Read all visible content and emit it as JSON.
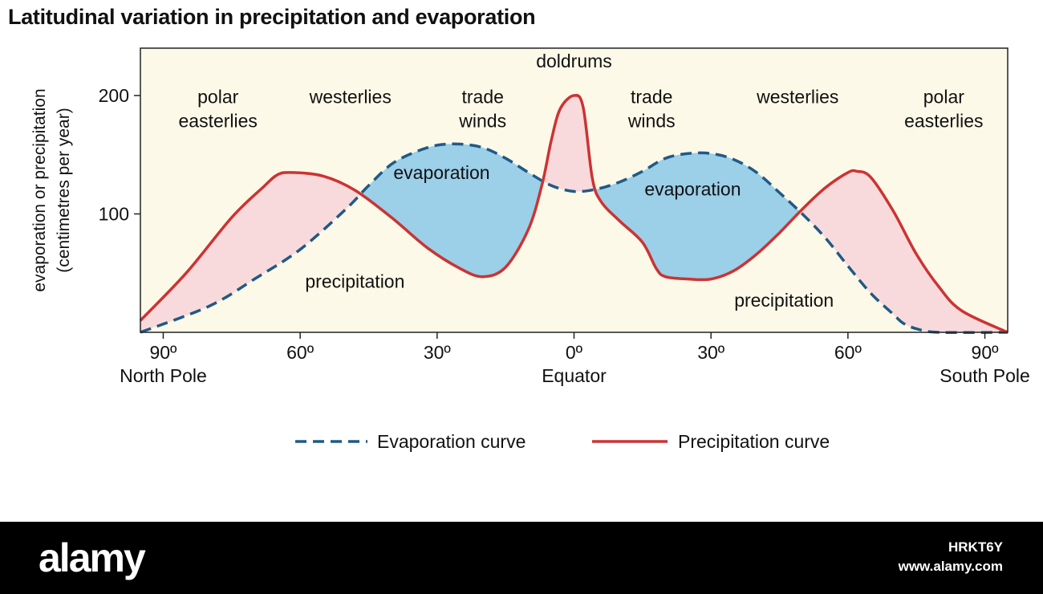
{
  "title": "Latitudinal variation in precipitation and evaporation",
  "chart_data": {
    "type": "line",
    "title": "Latitudinal variation in precipitation and evaporation",
    "ylabel_line1": "evaporation or precipitation",
    "ylabel_line2": "(centimetres per year)",
    "yticks": [
      100,
      200
    ],
    "ylim": [
      0,
      240
    ],
    "xlim": [
      -95,
      95
    ],
    "xticks": [
      {
        "x": -90,
        "label": "90º",
        "sub": "North Pole"
      },
      {
        "x": -60,
        "label": "60º",
        "sub": ""
      },
      {
        "x": -30,
        "label": "30º",
        "sub": ""
      },
      {
        "x": 0,
        "label": "0º",
        "sub": "Equator"
      },
      {
        "x": 30,
        "label": "30º",
        "sub": ""
      },
      {
        "x": 60,
        "label": "60º",
        "sub": ""
      },
      {
        "x": 90,
        "label": "90º",
        "sub": "South Pole"
      }
    ],
    "series": [
      {
        "name": "Evaporation curve",
        "color": "#1f5a85",
        "dashed": true,
        "x": [
          -95,
          -80,
          -70,
          -60,
          -50,
          -45,
          -40,
          -35,
          -30,
          -25,
          -20,
          -15,
          -10,
          -5,
          0,
          5,
          10,
          15,
          20,
          25,
          30,
          35,
          40,
          45,
          50,
          55,
          60,
          65,
          70,
          72,
          75,
          80,
          95
        ],
        "y": [
          0,
          22,
          45,
          70,
          104,
          124,
          142,
          152,
          158,
          159,
          156,
          147,
          135,
          124,
          119,
          121,
          127,
          136,
          147,
          151,
          151,
          146,
          135,
          118,
          100,
          80,
          56,
          33,
          15,
          8,
          3,
          0,
          0
        ]
      },
      {
        "name": "Precipitation curve",
        "color": "#cc3333",
        "dashed": false,
        "x": [
          -95,
          -85,
          -75,
          -68,
          -65,
          -62,
          -55,
          -48,
          -40,
          -32,
          -25,
          -20,
          -15,
          -10,
          -7,
          -5,
          -3,
          0,
          2,
          4,
          6,
          10,
          15,
          18,
          20,
          25,
          30,
          35,
          40,
          45,
          50,
          55,
          60,
          62,
          65,
          70,
          75,
          80,
          85,
          95
        ],
        "y": [
          10,
          50,
          97,
          123,
          133,
          135,
          132,
          120,
          97,
          71,
          54,
          47,
          55,
          87,
          125,
          162,
          189,
          200,
          190,
          130,
          110,
          94,
          76,
          54,
          47,
          45,
          45,
          52,
          66,
          84,
          104,
          122,
          135,
          136,
          131,
          102,
          66,
          38,
          18,
          0
        ]
      }
    ],
    "region_labels": [
      {
        "text": [
          "polar",
          "easterlies"
        ],
        "x": -78,
        "y": 199
      },
      {
        "text": [
          "westerlies"
        ],
        "x": -49,
        "y": 199
      },
      {
        "text": [
          "trade",
          "winds"
        ],
        "x": -20,
        "y": 199
      },
      {
        "text": [
          "doldrums"
        ],
        "x": 0,
        "y": 229
      },
      {
        "text": [
          "trade",
          "winds"
        ],
        "x": 17,
        "y": 199
      },
      {
        "text": [
          "westerlies"
        ],
        "x": 49,
        "y": 199
      },
      {
        "text": [
          "polar",
          "easterlies"
        ],
        "x": 81,
        "y": 199
      }
    ],
    "curve_labels": [
      {
        "text": "evaporation",
        "x": -29,
        "y": 135
      },
      {
        "text": "evaporation",
        "x": 26,
        "y": 121
      },
      {
        "text": "precipitation",
        "x": -48,
        "y": 43
      },
      {
        "text": "precipitation",
        "x": 46,
        "y": 27
      }
    ],
    "fill_evap_excess_color": "#9ccfe8",
    "fill_precip_excess_color": "#f9dadc",
    "plot_background": "#fdf9e8",
    "legend_position": "bottom"
  },
  "legend": {
    "evaporation_label": "Evaporation curve",
    "precipitation_label": "Precipitation curve"
  },
  "footer": {
    "brand": "alamy",
    "code": "HRKT6Y",
    "url": "www.alamy.com"
  }
}
